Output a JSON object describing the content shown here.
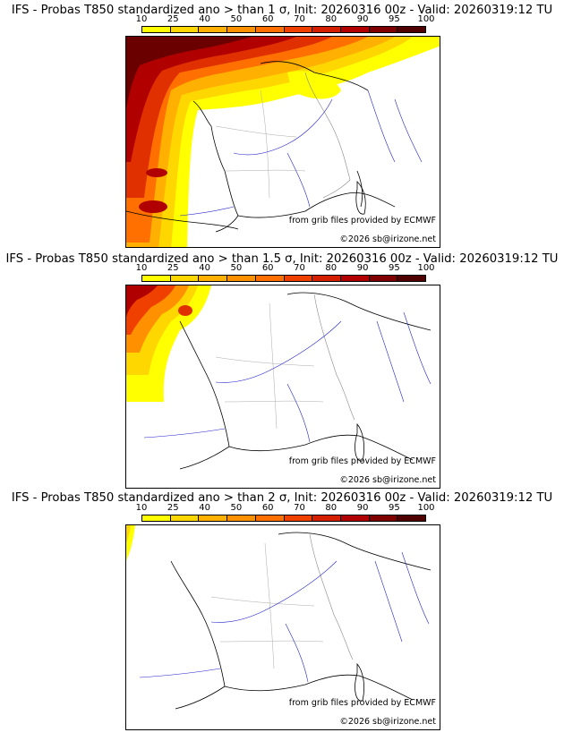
{
  "colorbar": {
    "ticks": [
      "10",
      "25",
      "40",
      "50",
      "60",
      "70",
      "80",
      "90",
      "95",
      "100"
    ],
    "colors": [
      "#ffff00",
      "#ffd700",
      "#ffb000",
      "#ff9000",
      "#ff7000",
      "#f04000",
      "#d42000",
      "#b00000",
      "#800000",
      "#500000"
    ]
  },
  "panels": [
    {
      "title": "IFS - Probas T850  standardized ano > than 1 σ, Init: 20260316 00z - Valid: 20260319:12 TU",
      "credit": "from grib files provided by ECMWF",
      "copyright": "©2026 sb@irizone.net"
    },
    {
      "title": "IFS - Probas T850  standardized ano > than 1.5 σ, Init: 20260316 00z - Valid: 20260319:12 TU",
      "credit": "from grib files provided by ECMWF",
      "copyright": "©2026 sb@irizone.net"
    },
    {
      "title": "IFS - Probas T850  standardized ano > than 2 σ, Init: 20260316 00z - Valid: 20260319:12 TU",
      "credit": "from grib files provided by ECMWF",
      "copyright": "©2026 sb@irizone.net"
    }
  ]
}
